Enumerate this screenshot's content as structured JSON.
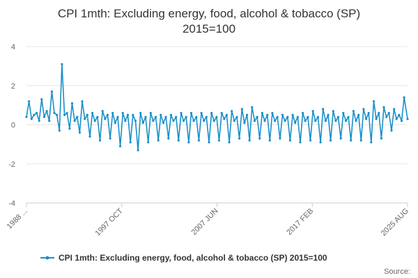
{
  "chart_data": {
    "type": "line",
    "title_line1": "CPI 1mth: Excluding energy, food, alcohol & tobacco (SP)",
    "title_line2": "2015=100",
    "xlabel": "",
    "ylabel": "",
    "ylim": [
      -4,
      4
    ],
    "y_ticks": [
      "4",
      "2",
      "0",
      "-2",
      "-4"
    ],
    "x_tick_labels": [
      "1988 ...",
      "1997 OCT",
      "2007 JUN",
      "2017 FEB",
      "2025 AUG"
    ],
    "x_range": [
      "1988-01",
      "2025-08"
    ],
    "grid": true,
    "legend_position": "bottom",
    "source_label": "Source:",
    "series": [
      {
        "name": "CPI 1mth: Excluding energy, food, alcohol & tobacco (SP) 2015=100",
        "color": "#1a8fc9",
        "x": [
          "1988-01",
          "1988-04",
          "1988-07",
          "1988-10",
          "1989-01",
          "1989-04",
          "1989-07",
          "1989-10",
          "1990-01",
          "1990-04",
          "1990-07",
          "1990-10",
          "1991-01",
          "1991-04",
          "1991-07",
          "1991-10",
          "1992-01",
          "1992-04",
          "1992-07",
          "1992-10",
          "1993-01",
          "1993-04",
          "1993-07",
          "1993-10",
          "1994-01",
          "1994-04",
          "1994-07",
          "1994-10",
          "1995-01",
          "1995-04",
          "1995-07",
          "1995-10",
          "1996-01",
          "1996-04",
          "1996-07",
          "1996-10",
          "1997-01",
          "1997-04",
          "1997-07",
          "1997-10",
          "1998-01",
          "1998-04",
          "1998-07",
          "1998-10",
          "1999-01",
          "1999-04",
          "1999-07",
          "1999-10",
          "2000-01",
          "2000-04",
          "2000-07",
          "2000-10",
          "2001-01",
          "2001-04",
          "2001-07",
          "2001-10",
          "2002-01",
          "2002-04",
          "2002-07",
          "2002-10",
          "2003-01",
          "2003-04",
          "2003-07",
          "2003-10",
          "2004-01",
          "2004-04",
          "2004-07",
          "2004-10",
          "2005-01",
          "2005-04",
          "2005-07",
          "2005-10",
          "2006-01",
          "2006-04",
          "2006-07",
          "2006-10",
          "2007-01",
          "2007-04",
          "2007-07",
          "2007-10",
          "2008-01",
          "2008-04",
          "2008-07",
          "2008-10",
          "2009-01",
          "2009-04",
          "2009-07",
          "2009-10",
          "2010-01",
          "2010-04",
          "2010-07",
          "2010-10",
          "2011-01",
          "2011-04",
          "2011-07",
          "2011-10",
          "2012-01",
          "2012-04",
          "2012-07",
          "2012-10",
          "2013-01",
          "2013-04",
          "2013-07",
          "2013-10",
          "2014-01",
          "2014-04",
          "2014-07",
          "2014-10",
          "2015-01",
          "2015-04",
          "2015-07",
          "2015-10",
          "2016-01",
          "2016-04",
          "2016-07",
          "2016-10",
          "2017-01",
          "2017-04",
          "2017-07",
          "2017-10",
          "2018-01",
          "2018-04",
          "2018-07",
          "2018-10",
          "2019-01",
          "2019-04",
          "2019-07",
          "2019-10",
          "2020-01",
          "2020-04",
          "2020-07",
          "2020-10",
          "2021-01",
          "2021-04",
          "2021-07",
          "2021-10",
          "2022-01",
          "2022-04",
          "2022-07",
          "2022-10",
          "2023-01",
          "2023-04",
          "2023-07",
          "2023-10",
          "2024-01",
          "2024-04",
          "2024-07",
          "2024-10",
          "2025-01",
          "2025-04",
          "2025-08"
        ],
        "values": [
          0.4,
          1.2,
          0.3,
          0.5,
          0.6,
          0.2,
          1.3,
          0.4,
          0.7,
          0.2,
          1.7,
          0.6,
          0.5,
          -0.3,
          3.1,
          0.5,
          0.6,
          -0.2,
          1.1,
          0.2,
          0.4,
          -0.4,
          1.2,
          0.3,
          0.5,
          -0.6,
          0.6,
          0.2,
          0.4,
          -0.8,
          0.7,
          0.3,
          0.5,
          -0.7,
          0.6,
          0.1,
          0.4,
          -1.1,
          0.6,
          0.2,
          0.5,
          -0.9,
          0.5,
          0.2,
          -1.3,
          0.6,
          0.1,
          0.4,
          -0.9,
          0.6,
          0.2,
          0.4,
          -0.8,
          0.5,
          0.1,
          0.4,
          -0.7,
          0.5,
          0.2,
          0.4,
          -0.8,
          0.6,
          0.2,
          0.4,
          -0.9,
          0.6,
          0.2,
          0.4,
          -0.8,
          0.6,
          0.2,
          0.4,
          -0.9,
          0.6,
          0.2,
          0.4,
          -0.8,
          0.6,
          0.3,
          0.5,
          -0.9,
          0.7,
          0.2,
          0.4,
          -0.7,
          0.8,
          0.1,
          0.5,
          -0.8,
          0.9,
          0.2,
          0.4,
          -0.7,
          0.6,
          0.2,
          0.5,
          -0.8,
          0.6,
          0.2,
          0.4,
          -0.7,
          0.5,
          0.2,
          0.4,
          -0.8,
          0.5,
          0.1,
          0.4,
          -0.9,
          0.6,
          0.2,
          0.4,
          -0.8,
          0.7,
          0.2,
          0.4,
          -0.9,
          0.8,
          0.2,
          0.5,
          -0.8,
          0.7,
          0.2,
          0.4,
          -0.7,
          0.6,
          0.2,
          0.4,
          -0.8,
          0.7,
          0.2,
          0.5,
          -0.8,
          0.8,
          0.3,
          0.6,
          -0.9,
          1.2,
          0.3,
          0.6,
          -0.7,
          0.9,
          0.4,
          0.6,
          -0.3,
          0.8,
          0.3,
          0.5,
          0.2,
          1.4,
          0.3
        ]
      }
    ]
  }
}
